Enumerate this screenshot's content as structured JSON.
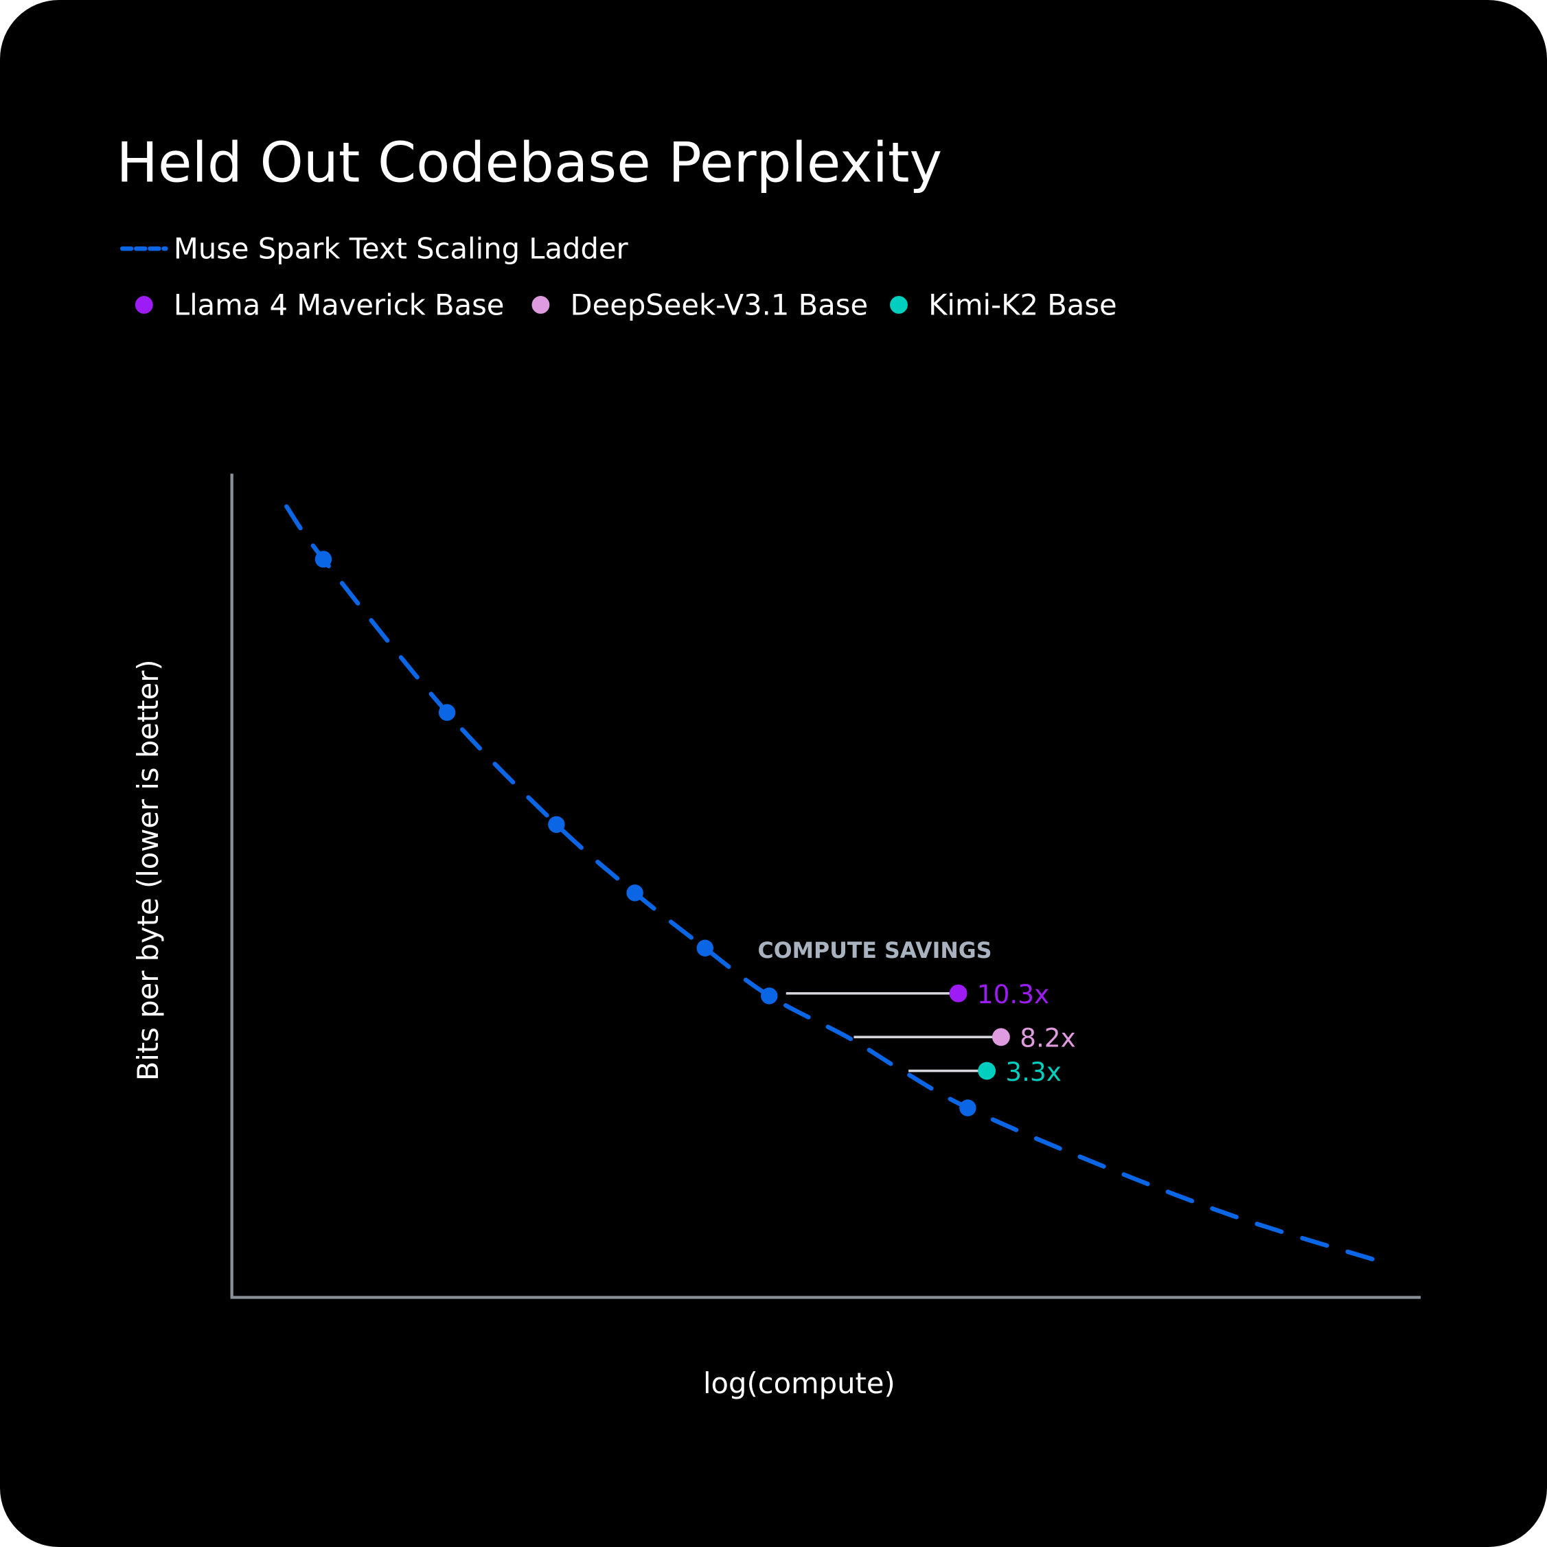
{
  "chart_data": {
    "type": "line",
    "title": "Held Out Codebase Perplexity",
    "xlabel": "log(compute)",
    "ylabel": "Bits per byte (lower is better)",
    "xlim": [
      0,
      100
    ],
    "ylim": [
      0,
      100
    ],
    "grid": false,
    "ticks": false,
    "legend_placement": "top-left",
    "series": [
      {
        "name": "Muse Spark Text Scaling Ladder",
        "style": "dashed line with markers",
        "color": "#0a66e4",
        "curve": [
          [
            4.6,
            96.0
          ],
          [
            7.7,
            89.6
          ],
          [
            18.1,
            71.0
          ],
          [
            27.3,
            57.4
          ],
          [
            33.9,
            49.1
          ],
          [
            39.8,
            42.4
          ],
          [
            45.2,
            36.6
          ],
          [
            51.9,
            31.5
          ],
          [
            56.4,
            27.5
          ],
          [
            61.9,
            23.0
          ],
          [
            71.8,
            16.8
          ],
          [
            84.2,
            9.9
          ],
          [
            96.5,
            4.4
          ]
        ],
        "points": [
          [
            7.7,
            89.6
          ],
          [
            18.1,
            71.0
          ],
          [
            27.3,
            57.4
          ],
          [
            33.9,
            49.1
          ],
          [
            39.8,
            42.4
          ],
          [
            45.2,
            36.6
          ],
          [
            61.9,
            23.0
          ]
        ]
      }
    ],
    "comparisons": [
      {
        "name": "Llama 4 Maverick Base",
        "color": "#9d1cf5",
        "x": 61.1,
        "y": 36.9,
        "ladder_x": 46.2,
        "savings": "10.3x"
      },
      {
        "name": "DeepSeek-V3.1 Base",
        "color": "#df9be0",
        "x": 64.7,
        "y": 31.6,
        "ladder_x": 51.9,
        "savings": "8.2x"
      },
      {
        "name": "Kimi-K2 Base",
        "color": "#00cfbf",
        "x": 63.5,
        "y": 27.5,
        "ladder_x": 56.5,
        "savings": "3.3x"
      }
    ],
    "annotation": "COMPUTE SAVINGS",
    "colors": {
      "background": "#000000",
      "axis": "#8a9099",
      "connector": "#d3d7dc",
      "annotation": "#a9b3bf",
      "text": "#ffffff"
    }
  }
}
